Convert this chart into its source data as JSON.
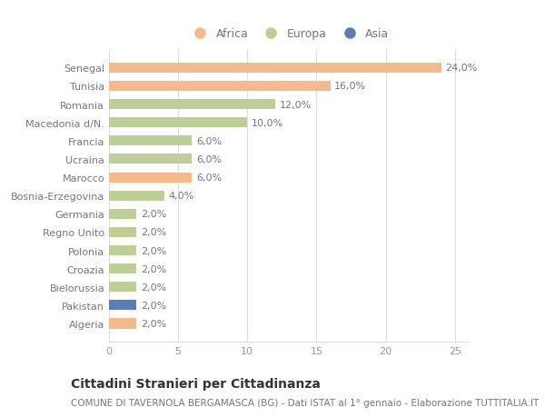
{
  "categories": [
    "Algeria",
    "Pakistan",
    "Bielorussia",
    "Croazia",
    "Polonia",
    "Regno Unito",
    "Germania",
    "Bosnia-Erzegovina",
    "Marocco",
    "Ucraina",
    "Francia",
    "Macedonia d/N.",
    "Romania",
    "Tunisia",
    "Senegal"
  ],
  "values": [
    2.0,
    2.0,
    2.0,
    2.0,
    2.0,
    2.0,
    2.0,
    4.0,
    6.0,
    6.0,
    6.0,
    10.0,
    12.0,
    16.0,
    24.0
  ],
  "continents": [
    "Africa",
    "Asia",
    "Europa",
    "Europa",
    "Europa",
    "Europa",
    "Europa",
    "Europa",
    "Africa",
    "Europa",
    "Europa",
    "Europa",
    "Europa",
    "Africa",
    "Africa"
  ],
  "labels": [
    "2,0%",
    "2,0%",
    "2,0%",
    "2,0%",
    "2,0%",
    "2,0%",
    "2,0%",
    "4,0%",
    "6,0%",
    "6,0%",
    "6,0%",
    "10,0%",
    "12,0%",
    "16,0%",
    "24,0%"
  ],
  "color_map": {
    "Africa": "#F5B98A",
    "Europa": "#BDCF95",
    "Asia": "#5B7DB1"
  },
  "legend_items": [
    {
      "label": "Africa",
      "color": "#F5B98A"
    },
    {
      "label": "Europa",
      "color": "#BDCF95"
    },
    {
      "label": "Asia",
      "color": "#5B7DB1"
    }
  ],
  "xlim": [
    0,
    26
  ],
  "xticks": [
    0,
    5,
    10,
    15,
    20,
    25
  ],
  "title1": "Cittadini Stranieri per Cittadinanza",
  "title2": "COMUNE DI TAVERNOLA BERGAMASCA (BG) - Dati ISTAT al 1° gennaio - Elaborazione TUTTITALIA.IT",
  "background_color": "#ffffff",
  "plot_bg_color": "#ffffff",
  "grid_color": "#dddddd",
  "bar_height": 0.55,
  "label_fontsize": 8,
  "tick_fontsize": 8,
  "title1_fontsize": 10,
  "title2_fontsize": 7.5
}
